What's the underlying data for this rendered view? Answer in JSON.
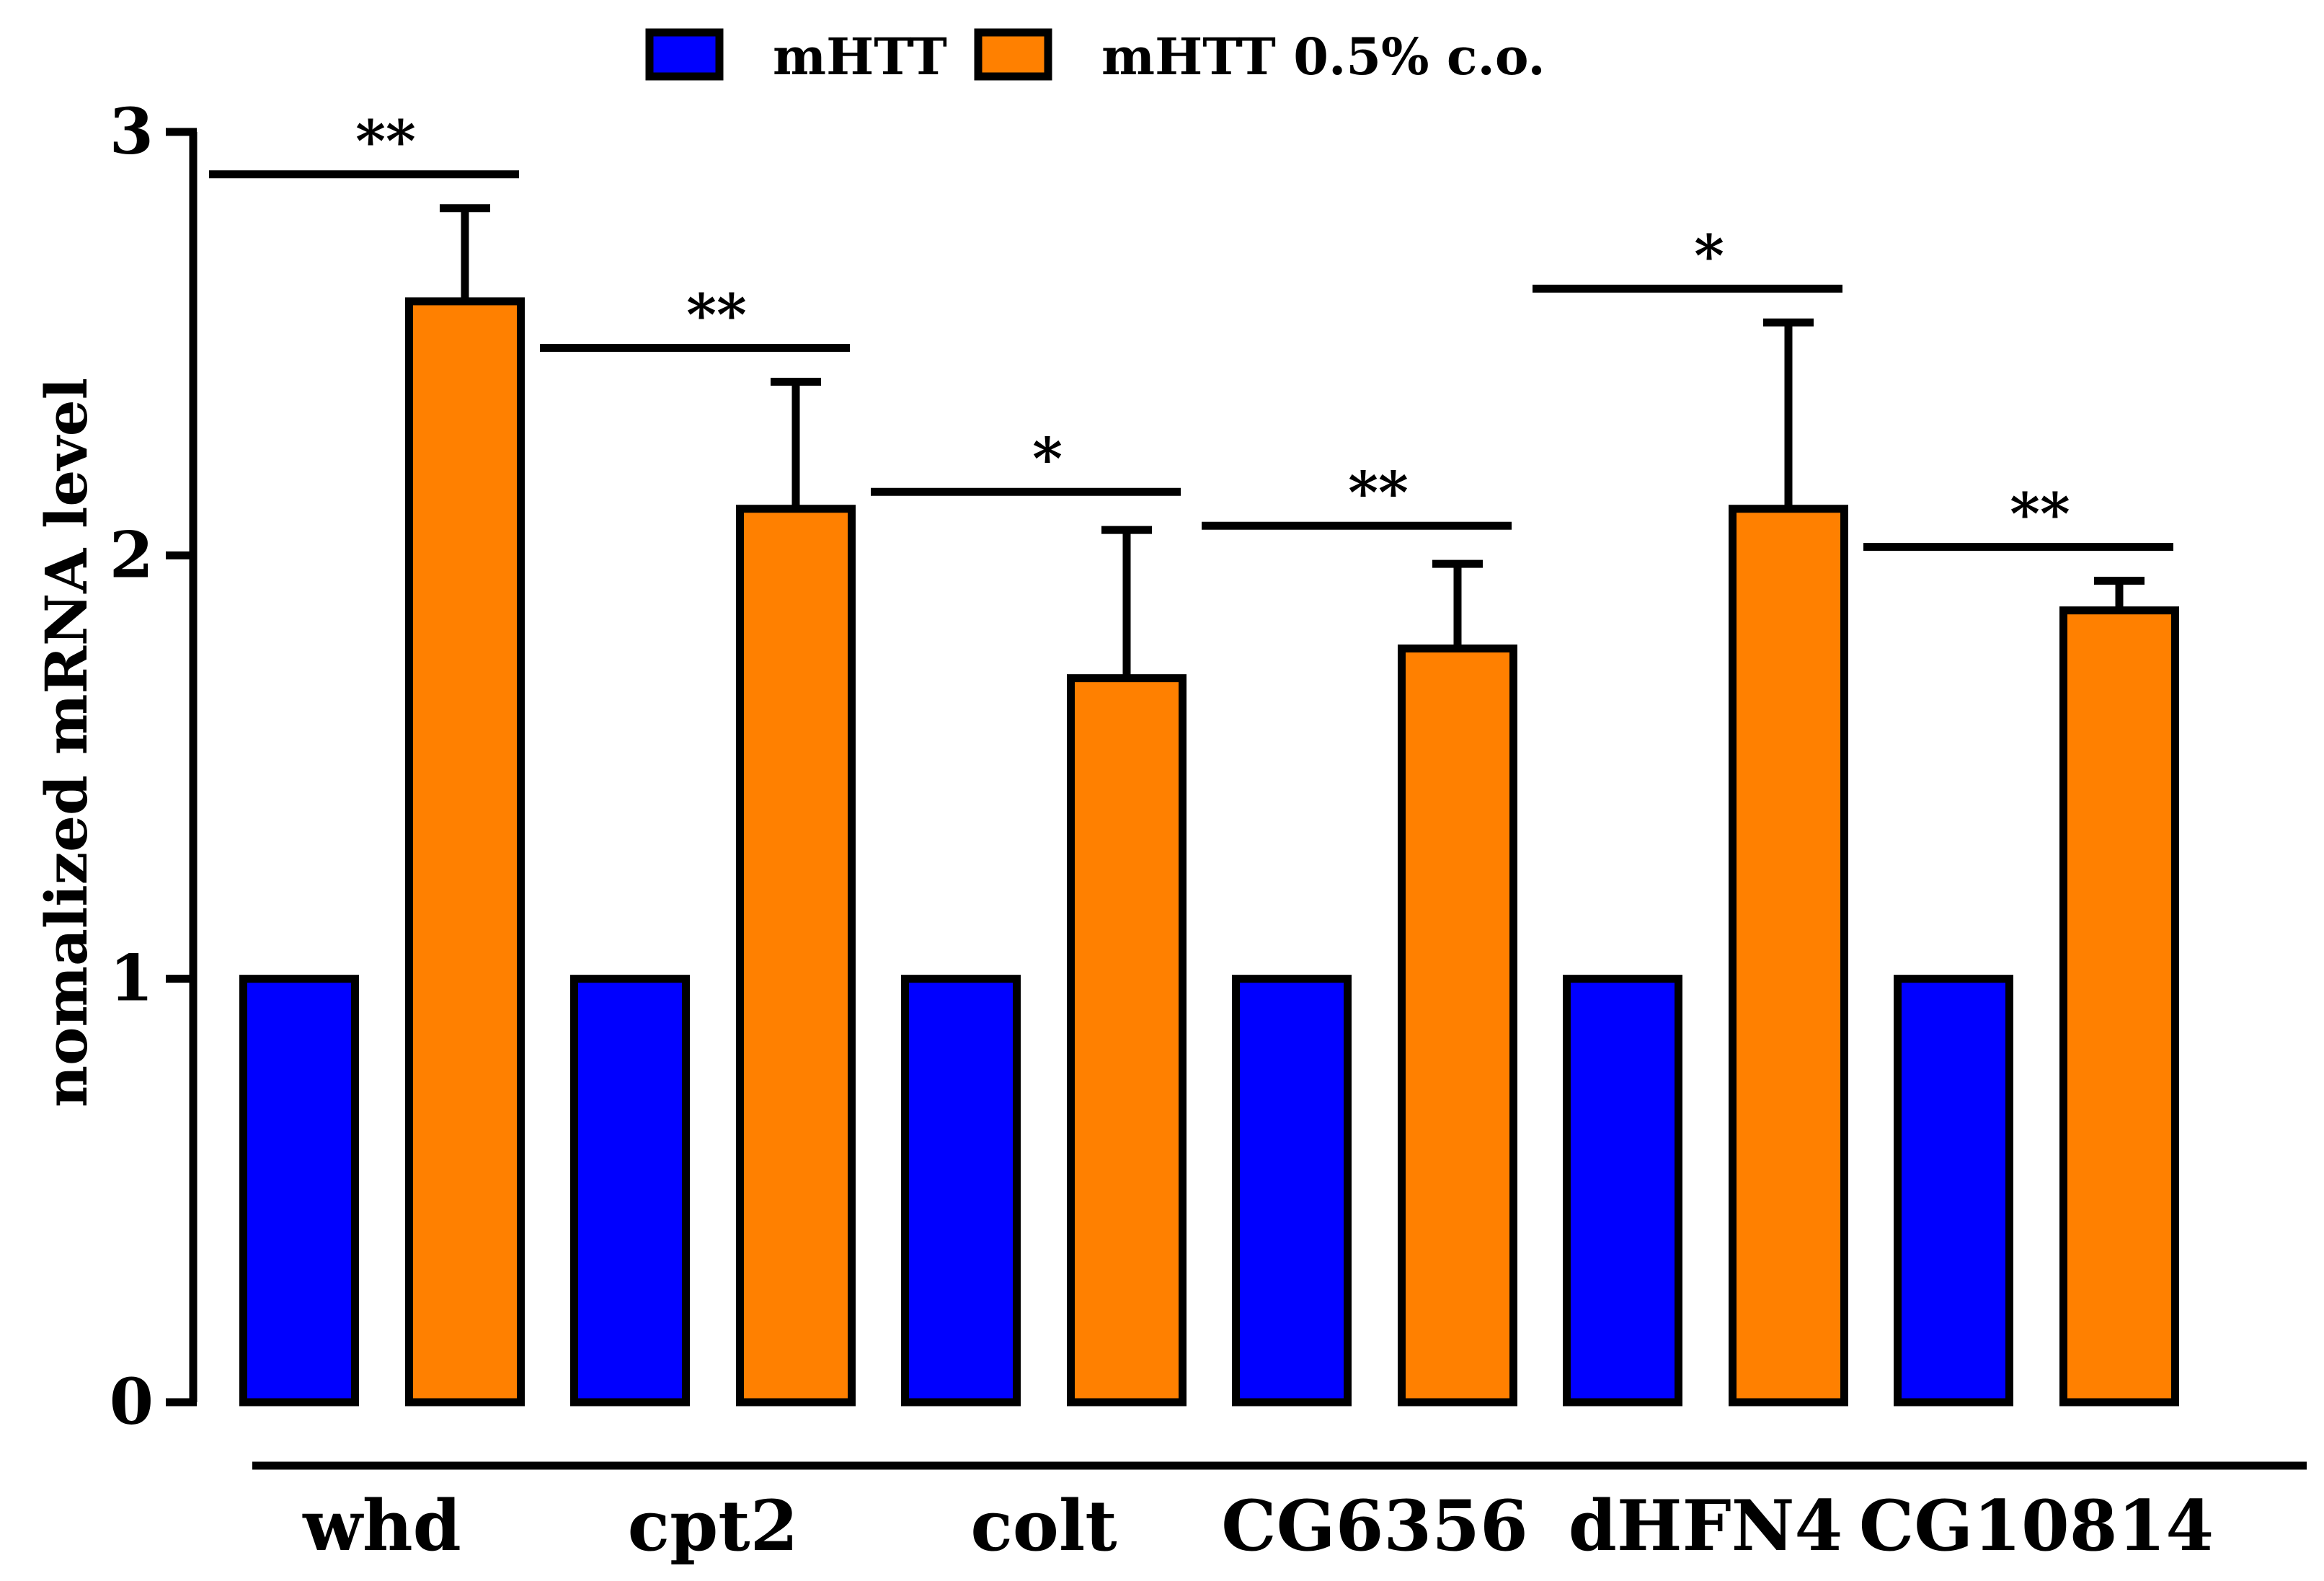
{
  "chart_data": {
    "type": "bar",
    "title": "",
    "xlabel": "",
    "ylabel": "nomalized mRNA level",
    "ylim": [
      0,
      3
    ],
    "yticks": [
      "0",
      "1",
      "2",
      "3"
    ],
    "grid": false,
    "legend_position": "top",
    "categories": [
      "whd",
      "cpt2",
      "colt",
      "CG6356",
      "dHFN4",
      "CG10814"
    ],
    "series": [
      {
        "name": "mHTT",
        "color": "#0000FF",
        "values": [
          1,
          1,
          1,
          1,
          1,
          1
        ],
        "errors": [
          0,
          0,
          0,
          0,
          0,
          0
        ]
      },
      {
        "name": "mHTT 0.5% c.o.",
        "color": "#FF8000",
        "values": [
          2.6,
          2.11,
          1.71,
          1.78,
          2.11,
          1.87
        ],
        "errors": [
          0.22,
          0.3,
          0.35,
          0.2,
          0.44,
          0.07
        ]
      }
    ],
    "significance": [
      {
        "category": "whd",
        "label": "**",
        "y": 2.9
      },
      {
        "category": "cpt2",
        "label": "**",
        "y": 2.49
      },
      {
        "category": "colt",
        "label": "*",
        "y": 2.15
      },
      {
        "category": "CG6356",
        "label": "**",
        "y": 2.07
      },
      {
        "category": "dHFN4",
        "label": "*",
        "y": 2.63
      },
      {
        "category": "CG10814",
        "label": "**",
        "y": 2.02
      }
    ]
  }
}
